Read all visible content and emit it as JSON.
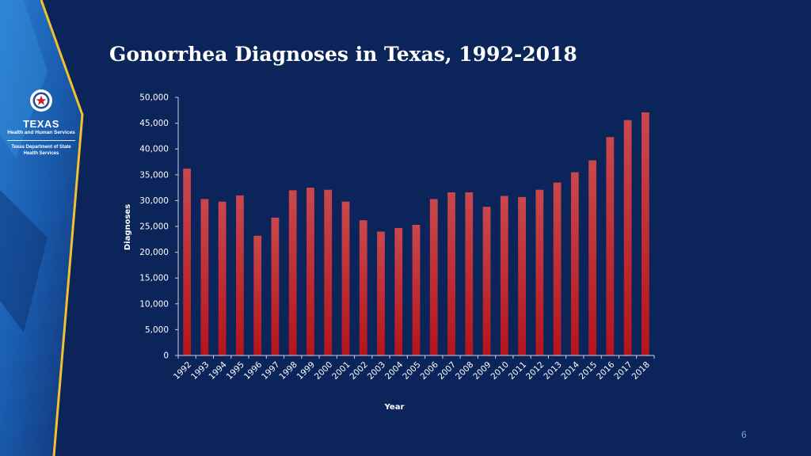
{
  "slide": {
    "title": "Gonorrhea Diagnoses in Texas, 1992-2018",
    "page_number": "6"
  },
  "logo": {
    "texas": "TEXAS",
    "hhs": "Health and Human Services",
    "dshs_line1": "Texas Department of State",
    "dshs_line2": "Health Services"
  },
  "colors": {
    "background": "#0b2459",
    "accent_yellow": "#f2c12e",
    "bar_top": "#c9484d",
    "bar_bottom": "#b5141c",
    "axis": "#c8d2e8"
  },
  "chart_data": {
    "type": "bar",
    "title": "",
    "xlabel": "Year",
    "ylabel": "Diagnoses",
    "ylim": [
      0,
      50000
    ],
    "yticks": [
      0,
      5000,
      10000,
      15000,
      20000,
      25000,
      30000,
      35000,
      40000,
      45000,
      50000
    ],
    "ytick_labels": [
      "0",
      "5,000",
      "10,000",
      "15,000",
      "20,000",
      "25,000",
      "30,000",
      "35,000",
      "40,000",
      "45,000",
      "50,000"
    ],
    "grid": false,
    "legend": "none",
    "categories": [
      "1992",
      "1993",
      "1994",
      "1995",
      "1996",
      "1997",
      "1998",
      "1999",
      "2000",
      "2001",
      "2002",
      "2003",
      "2004",
      "2005",
      "2006",
      "2007",
      "2008",
      "2009",
      "2010",
      "2011",
      "2012",
      "2013",
      "2014",
      "2015",
      "2016",
      "2017",
      "2018"
    ],
    "values": [
      36200,
      30300,
      29800,
      31000,
      23200,
      26700,
      32000,
      32500,
      32100,
      29800,
      26200,
      24000,
      24700,
      25300,
      30300,
      31600,
      31600,
      28800,
      30900,
      30700,
      32100,
      33500,
      35500,
      37800,
      42300,
      45600,
      47100
    ]
  }
}
